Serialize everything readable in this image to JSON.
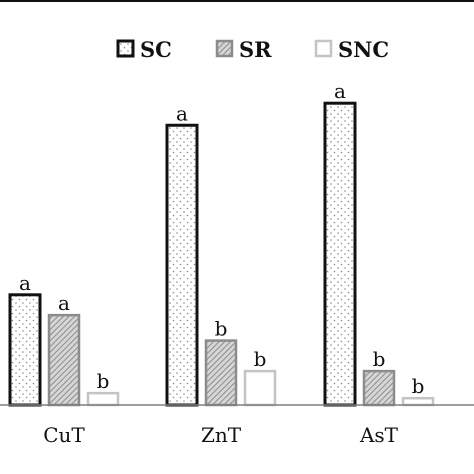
{
  "chart_data": {
    "type": "bar",
    "categories": [
      "CuT",
      "ZnT",
      "AsT"
    ],
    "series": [
      {
        "name": "SC",
        "values": [
          6.5,
          16.5,
          17.8
        ],
        "labels": [
          "a",
          "a",
          "a"
        ],
        "pattern": "dots",
        "stroke": "#111111"
      },
      {
        "name": "SR",
        "values": [
          5.3,
          3.8,
          2.0
        ],
        "labels": [
          "a",
          "b",
          "b"
        ],
        "pattern": "hatch",
        "stroke": "#8c8c8c"
      },
      {
        "name": "SNC",
        "values": [
          0.7,
          2.0,
          0.4
        ],
        "labels": [
          "b",
          "b",
          "b"
        ],
        "pattern": "none",
        "stroke": "#c4c4c4"
      }
    ],
    "ylim": [
      0,
      22
    ],
    "grid": false,
    "legend": "top-right",
    "title": "",
    "xlabel": "",
    "ylabel": ""
  }
}
